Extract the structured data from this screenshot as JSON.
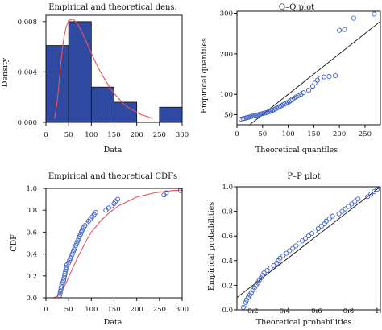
{
  "colors": {
    "bar_fill": "#2f4aa0",
    "bar_stroke": "#111111",
    "density_curve": "#e8555a",
    "points": "#3f63c7",
    "reference_line": "#111111"
  },
  "chart_data": [
    {
      "type": "bar",
      "title": "Empirical and theoretical dens.",
      "xlabel": "Data",
      "ylabel": "Density",
      "xlim": [
        0,
        300
      ],
      "ylim": [
        0,
        0.0085
      ],
      "xticks": [
        0,
        50,
        100,
        150,
        200,
        250,
        300
      ],
      "yticks": [
        0.0,
        0.004,
        0.008
      ],
      "ytick_labels": [
        "0.000",
        "0.004",
        "0.008"
      ],
      "bins": [
        {
          "from": 0,
          "to": 50,
          "value": 0.0061
        },
        {
          "from": 50,
          "to": 100,
          "value": 0.008
        },
        {
          "from": 100,
          "to": 150,
          "value": 0.0028
        },
        {
          "from": 150,
          "to": 200,
          "value": 0.0016
        },
        {
          "from": 200,
          "to": 250,
          "value": 0.0
        },
        {
          "from": 250,
          "to": 300,
          "value": 0.0012
        }
      ],
      "curve": {
        "x": [
          19,
          25,
          30,
          35,
          40,
          45,
          50,
          60,
          70,
          80,
          90,
          100,
          110,
          120,
          130,
          140,
          150,
          160,
          170,
          180,
          190,
          200,
          210,
          220,
          235
        ],
        "y": [
          0.0003,
          0.0017,
          0.0036,
          0.0055,
          0.0068,
          0.0076,
          0.0081,
          0.0082,
          0.0078,
          0.0071,
          0.0063,
          0.0055,
          0.0047,
          0.004,
          0.0034,
          0.0028,
          0.0023,
          0.0019,
          0.0015,
          0.0012,
          0.001,
          0.0008,
          0.0006,
          0.0005,
          0.0003
        ]
      }
    },
    {
      "type": "scatter",
      "title": "Q–Q plot",
      "xlabel": "Theoretical quantiles",
      "ylabel": "Empirical quantiles",
      "xlim": [
        0,
        280
      ],
      "ylim": [
        25,
        305
      ],
      "xticks": [
        0,
        50,
        100,
        150,
        200,
        250
      ],
      "yticks": [
        50,
        100,
        200,
        300
      ],
      "ref_line": [
        [
          0,
          0
        ],
        [
          305,
          305
        ]
      ],
      "points": [
        [
          8,
          39
        ],
        [
          12,
          40
        ],
        [
          15,
          41
        ],
        [
          18,
          42
        ],
        [
          21,
          43
        ],
        [
          24,
          44
        ],
        [
          27,
          45
        ],
        [
          30,
          46
        ],
        [
          33,
          47
        ],
        [
          36,
          48
        ],
        [
          39,
          49
        ],
        [
          42,
          50
        ],
        [
          45,
          51
        ],
        [
          48,
          52
        ],
        [
          51,
          53
        ],
        [
          54,
          54
        ],
        [
          57,
          55
        ],
        [
          60,
          56
        ],
        [
          63,
          57
        ],
        [
          66,
          59
        ],
        [
          69,
          60
        ],
        [
          72,
          62
        ],
        [
          75,
          64
        ],
        [
          78,
          66
        ],
        [
          81,
          68
        ],
        [
          84,
          70
        ],
        [
          87,
          72
        ],
        [
          90,
          74
        ],
        [
          93,
          76
        ],
        [
          96,
          78
        ],
        [
          99,
          80
        ],
        [
          102,
          82
        ],
        [
          105,
          85
        ],
        [
          108,
          88
        ],
        [
          112,
          91
        ],
        [
          116,
          94
        ],
        [
          120,
          97
        ],
        [
          125,
          100
        ],
        [
          130,
          104
        ],
        [
          140,
          110
        ],
        [
          148,
          120
        ],
        [
          152,
          128
        ],
        [
          157,
          135
        ],
        [
          163,
          140
        ],
        [
          170,
          143
        ],
        [
          180,
          144
        ],
        [
          192,
          146
        ],
        [
          200,
          258
        ],
        [
          210,
          260
        ],
        [
          228,
          288
        ],
        [
          268,
          298
        ]
      ]
    },
    {
      "type": "scatter",
      "title": "Empirical and theoretical CDFs",
      "xlabel": "Data",
      "ylabel": "CDF",
      "xlim": [
        0,
        300
      ],
      "ylim": [
        0,
        1.0
      ],
      "xticks": [
        0,
        50,
        100,
        150,
        200,
        250,
        300
      ],
      "yticks": [
        0.0,
        0.2,
        0.4,
        0.6,
        0.8,
        1.0
      ],
      "ytick_labels": [
        "0.0",
        "0.2",
        "0.4",
        "0.6",
        "0.8",
        "1.0"
      ],
      "curve": {
        "x": [
          15,
          20,
          25,
          30,
          35,
          40,
          45,
          50,
          60,
          70,
          80,
          90,
          100,
          110,
          120,
          140,
          160,
          180,
          200,
          220,
          240,
          260,
          280,
          300
        ],
        "y": [
          0.0,
          0.005,
          0.015,
          0.035,
          0.06,
          0.1,
          0.14,
          0.19,
          0.28,
          0.37,
          0.45,
          0.53,
          0.6,
          0.65,
          0.7,
          0.78,
          0.84,
          0.88,
          0.92,
          0.94,
          0.96,
          0.97,
          0.98,
          0.985
        ]
      },
      "points": [
        [
          30,
          0.02
        ],
        [
          31,
          0.04
        ],
        [
          32,
          0.06
        ],
        [
          33,
          0.08
        ],
        [
          34,
          0.1
        ],
        [
          35,
          0.12
        ],
        [
          37,
          0.14
        ],
        [
          39,
          0.16
        ],
        [
          40,
          0.18
        ],
        [
          41,
          0.2
        ],
        [
          42,
          0.22
        ],
        [
          43,
          0.24
        ],
        [
          44,
          0.26
        ],
        [
          45,
          0.28
        ],
        [
          46,
          0.3
        ],
        [
          50,
          0.32
        ],
        [
          52,
          0.34
        ],
        [
          54,
          0.36
        ],
        [
          56,
          0.38
        ],
        [
          58,
          0.4
        ],
        [
          60,
          0.42
        ],
        [
          62,
          0.44
        ],
        [
          64,
          0.46
        ],
        [
          66,
          0.48
        ],
        [
          68,
          0.5
        ],
        [
          70,
          0.52
        ],
        [
          72,
          0.54
        ],
        [
          74,
          0.56
        ],
        [
          76,
          0.58
        ],
        [
          78,
          0.6
        ],
        [
          80,
          0.62
        ],
        [
          83,
          0.64
        ],
        [
          86,
          0.66
        ],
        [
          90,
          0.68
        ],
        [
          94,
          0.7
        ],
        [
          98,
          0.72
        ],
        [
          102,
          0.74
        ],
        [
          106,
          0.76
        ],
        [
          110,
          0.78
        ],
        [
          132,
          0.8
        ],
        [
          138,
          0.82
        ],
        [
          145,
          0.84
        ],
        [
          150,
          0.86
        ],
        [
          153,
          0.88
        ],
        [
          158,
          0.9
        ],
        [
          260,
          0.94
        ],
        [
          265,
          0.96
        ],
        [
          296,
          0.98
        ]
      ]
    },
    {
      "type": "scatter",
      "title": "P–P plot",
      "xlabel": "Theoretical probabilities",
      "ylabel": "Empirical probabilities",
      "xlim": [
        0.1,
        1.0
      ],
      "ylim": [
        0.0,
        1.0
      ],
      "xticks": [
        0.2,
        0.4,
        0.6,
        0.8,
        1.0
      ],
      "yticks": [
        0.0,
        0.2,
        0.4,
        0.6,
        0.8,
        1.0
      ],
      "xtick_labels": [
        "0.2",
        "0.4",
        "0.6",
        "0.8",
        "1.0"
      ],
      "ytick_labels": [
        "0.0",
        "0.2",
        "0.4",
        "0.6",
        "0.8",
        "1.0"
      ],
      "ref_line": [
        [
          0.1,
          0.1
        ],
        [
          1.0,
          1.0
        ]
      ],
      "points": [
        [
          0.14,
          0.02
        ],
        [
          0.15,
          0.04
        ],
        [
          0.155,
          0.06
        ],
        [
          0.16,
          0.08
        ],
        [
          0.17,
          0.1
        ],
        [
          0.18,
          0.12
        ],
        [
          0.19,
          0.14
        ],
        [
          0.2,
          0.16
        ],
        [
          0.21,
          0.18
        ],
        [
          0.22,
          0.2
        ],
        [
          0.23,
          0.22
        ],
        [
          0.24,
          0.24
        ],
        [
          0.25,
          0.26
        ],
        [
          0.26,
          0.28
        ],
        [
          0.27,
          0.3
        ],
        [
          0.29,
          0.32
        ],
        [
          0.31,
          0.34
        ],
        [
          0.33,
          0.36
        ],
        [
          0.35,
          0.38
        ],
        [
          0.36,
          0.4
        ],
        [
          0.37,
          0.42
        ],
        [
          0.39,
          0.44
        ],
        [
          0.41,
          0.46
        ],
        [
          0.43,
          0.48
        ],
        [
          0.45,
          0.5
        ],
        [
          0.47,
          0.52
        ],
        [
          0.49,
          0.54
        ],
        [
          0.51,
          0.56
        ],
        [
          0.53,
          0.58
        ],
        [
          0.55,
          0.6
        ],
        [
          0.57,
          0.62
        ],
        [
          0.59,
          0.64
        ],
        [
          0.61,
          0.66
        ],
        [
          0.63,
          0.68
        ],
        [
          0.65,
          0.7
        ],
        [
          0.66,
          0.72
        ],
        [
          0.68,
          0.74
        ],
        [
          0.7,
          0.76
        ],
        [
          0.74,
          0.78
        ],
        [
          0.76,
          0.8
        ],
        [
          0.78,
          0.82
        ],
        [
          0.8,
          0.84
        ],
        [
          0.82,
          0.86
        ],
        [
          0.84,
          0.88
        ],
        [
          0.86,
          0.9
        ],
        [
          0.92,
          0.92
        ],
        [
          0.94,
          0.94
        ],
        [
          0.96,
          0.96
        ],
        [
          0.98,
          0.98
        ]
      ]
    }
  ]
}
